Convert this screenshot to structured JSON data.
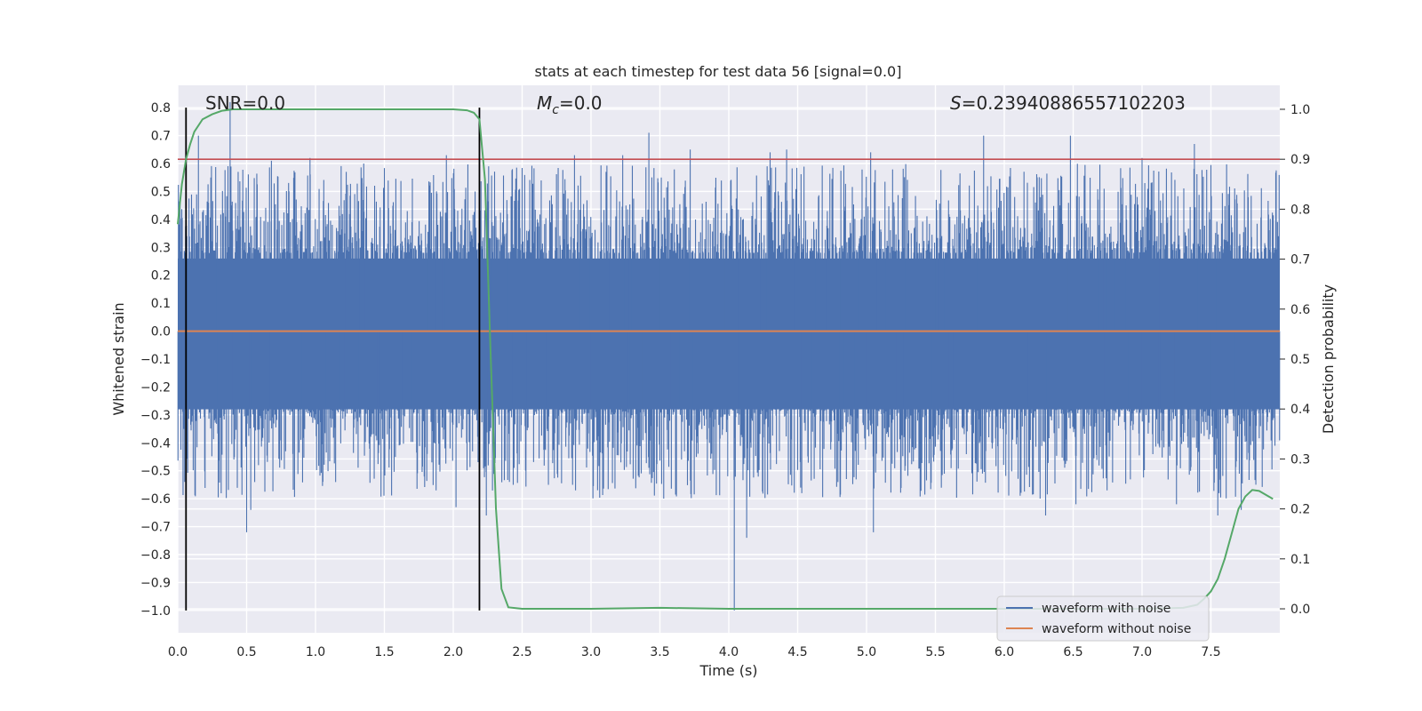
{
  "chart_data": {
    "type": "line",
    "title": "stats at each timestep for test data 56 [signal=0.0]",
    "xlabel": "Time (s)",
    "ylabel": "Whitened strain",
    "y2label": "Detection probability",
    "xlim": [
      0.0,
      8.0
    ],
    "ylim": [
      -1.08,
      0.88
    ],
    "y2lim": [
      -0.048,
      1.048
    ],
    "x_ticks": [
      "0.0",
      "0.5",
      "1.0",
      "1.5",
      "2.0",
      "2.5",
      "3.0",
      "3.5",
      "4.0",
      "4.5",
      "5.0",
      "5.5",
      "6.0",
      "6.5",
      "7.0",
      "7.5"
    ],
    "y_ticks": [
      "0.8",
      "0.7",
      "0.6",
      "0.5",
      "0.4",
      "0.3",
      "0.2",
      "0.1",
      "0.0",
      "−0.1",
      "−0.2",
      "−0.3",
      "−0.4",
      "−0.5",
      "−0.6",
      "−0.7",
      "−0.8",
      "−0.9",
      "−1.0"
    ],
    "y2_ticks": [
      "1.0",
      "0.9",
      "0.8",
      "0.7",
      "0.6",
      "0.5",
      "0.4",
      "0.3",
      "0.2",
      "0.1",
      "0.0"
    ],
    "grid": true,
    "legend_position": "lower-right",
    "legend": [
      {
        "label": "waveform with noise",
        "color": "#4c72b0"
      },
      {
        "label": "waveform without noise",
        "color": "#dd8452"
      }
    ],
    "annotations": {
      "snr": "SNR=0.0",
      "mc_symbol": "M",
      "mc_sub": "c",
      "mc_value": "=0.0",
      "s_symbol": "S",
      "s_value": "=0.23940886557102203"
    },
    "threshold": {
      "value": 0.9,
      "color": "#c44e52"
    },
    "vlines": [
      {
        "x": 0.06,
        "y_from": -1.0,
        "y_to": 0.8
      },
      {
        "x": 2.19,
        "y_from": -1.0,
        "y_to": 0.8
      }
    ],
    "noise_series": {
      "name": "waveform with noise",
      "color": "#4c72b0",
      "core_band": [
        -0.28,
        0.26
      ],
      "spikes": [
        {
          "x": 0.05,
          "y": -0.54
        },
        {
          "x": 0.15,
          "y": 0.7
        },
        {
          "x": 0.24,
          "y": 0.55
        },
        {
          "x": 0.38,
          "y": 0.82
        },
        {
          "x": 0.5,
          "y": -0.72
        },
        {
          "x": 0.53,
          "y": -0.64
        },
        {
          "x": 0.68,
          "y": 0.61
        },
        {
          "x": 0.96,
          "y": 0.62
        },
        {
          "x": 1.35,
          "y": 0.6
        },
        {
          "x": 1.95,
          "y": 0.63
        },
        {
          "x": 2.02,
          "y": -0.63
        },
        {
          "x": 2.24,
          "y": -0.66
        },
        {
          "x": 2.88,
          "y": 0.63
        },
        {
          "x": 3.23,
          "y": 0.63
        },
        {
          "x": 3.42,
          "y": 0.71
        },
        {
          "x": 3.51,
          "y": 0.55
        },
        {
          "x": 3.72,
          "y": 0.65
        },
        {
          "x": 4.04,
          "y": -1.0
        },
        {
          "x": 4.13,
          "y": -0.74
        },
        {
          "x": 4.3,
          "y": 0.64
        },
        {
          "x": 4.42,
          "y": 0.65
        },
        {
          "x": 4.53,
          "y": -0.58
        },
        {
          "x": 5.03,
          "y": 0.64
        },
        {
          "x": 5.05,
          "y": -0.72
        },
        {
          "x": 5.85,
          "y": 0.7
        },
        {
          "x": 6.3,
          "y": -0.66
        },
        {
          "x": 6.48,
          "y": 0.7
        },
        {
          "x": 6.52,
          "y": -0.62
        },
        {
          "x": 7.0,
          "y": 0.62
        },
        {
          "x": 7.25,
          "y": -0.62
        },
        {
          "x": 7.38,
          "y": 0.67
        },
        {
          "x": 7.55,
          "y": -0.66
        },
        {
          "x": 7.72,
          "y": -0.64
        }
      ]
    },
    "clean_series": {
      "name": "waveform without noise",
      "color": "#dd8452",
      "y": 0.0
    },
    "probability_series": {
      "color": "#55a868",
      "x": [
        0.0,
        0.03,
        0.06,
        0.09,
        0.12,
        0.18,
        0.25,
        0.32,
        0.4,
        0.55,
        1.0,
        1.5,
        2.0,
        2.1,
        2.15,
        2.19,
        2.23,
        2.27,
        2.31,
        2.35,
        2.4,
        2.5,
        3.0,
        3.5,
        4.0,
        5.0,
        6.0,
        7.0,
        7.3,
        7.4,
        7.45,
        7.5,
        7.55,
        7.6,
        7.65,
        7.7,
        7.75,
        7.8,
        7.85,
        7.9,
        7.95
      ],
      "y": [
        0.77,
        0.85,
        0.9,
        0.93,
        0.955,
        0.98,
        0.99,
        0.997,
        1.0,
        1.0,
        1.0,
        1.0,
        1.0,
        0.998,
        0.993,
        0.98,
        0.86,
        0.52,
        0.2,
        0.04,
        0.003,
        0.0,
        0.0,
        0.002,
        0.0,
        0.0,
        0.0,
        0.0,
        0.002,
        0.008,
        0.02,
        0.035,
        0.06,
        0.1,
        0.15,
        0.2,
        0.225,
        0.238,
        0.236,
        0.228,
        0.22
      ]
    }
  }
}
